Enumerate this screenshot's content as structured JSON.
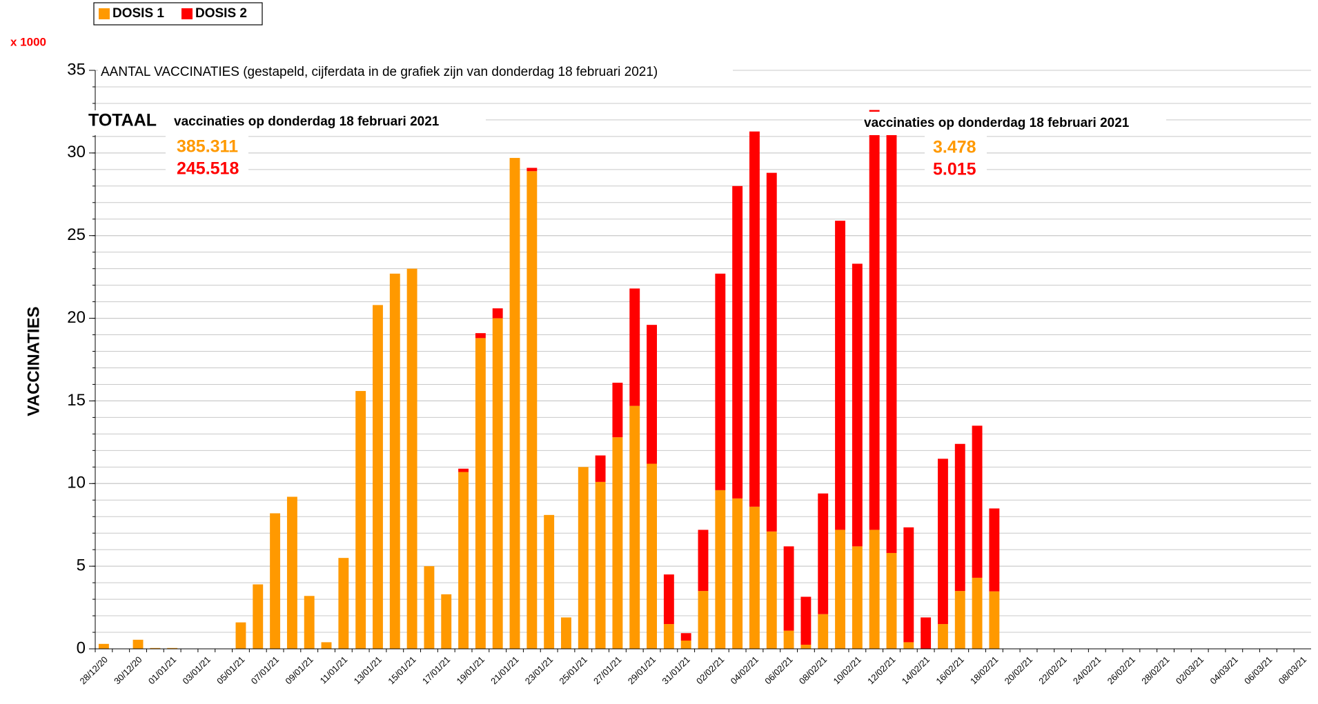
{
  "chart_data": {
    "type": "stacked_bar",
    "title": "AANTAL VACCINATIES (gestapeld, cijferdata in de grafiek zijn van donderdag 18 februari 2021)",
    "y_label": "VACCINATIES",
    "y_unit": "x 1000",
    "categories": [
      "28/12/20",
      null,
      "30/12/20",
      null,
      "01/01/21",
      null,
      "03/01/21",
      null,
      "05/01/21",
      null,
      "07/01/21",
      null,
      "09/01/21",
      null,
      "11/01/21",
      null,
      "13/01/21",
      null,
      "15/01/21",
      null,
      "17/01/21",
      null,
      "19/01/21",
      null,
      "21/01/21",
      null,
      "23/01/21",
      null,
      "25/01/21",
      null,
      "27/01/21",
      null,
      "29/01/21",
      null,
      "31/01/21",
      null,
      "02/02/21",
      null,
      "04/02/21",
      null,
      "06/02/21",
      null,
      "08/02/21",
      null,
      "10/02/21",
      null,
      "12/02/21",
      null,
      "14/02/21",
      null,
      "16/02/21",
      null,
      "18/02/21",
      null,
      "20/02/21",
      null,
      "22/02/21",
      null,
      "24/02/21",
      null,
      "26/02/21",
      null,
      "28/02/21",
      null,
      "02/03/21",
      null,
      "04/03/21",
      null,
      "06/03/21",
      null,
      "08/03/21"
    ],
    "series": [
      {
        "name": "DOSIS 1",
        "color": "#ff9900",
        "values": [
          0.3,
          0,
          0.55,
          0.05,
          0.05,
          0,
          0,
          0,
          1.6,
          3.9,
          8.2,
          9.2,
          3.2,
          0.4,
          5.5,
          15.6,
          20.8,
          22.7,
          23.0,
          5.0,
          3.3,
          10.7,
          18.8,
          20.0,
          29.7,
          28.9,
          8.1,
          1.9,
          11.0,
          10.1,
          12.8,
          14.7,
          11.2,
          1.5,
          0.5,
          3.5,
          9.6,
          9.1,
          8.6,
          7.1,
          1.1,
          0.25,
          2.1,
          7.2,
          6.2,
          7.2,
          5.8,
          0.4,
          0,
          1.5,
          3.5,
          4.3,
          3.478,
          null,
          null,
          null,
          null,
          null,
          null,
          null,
          null,
          null,
          null,
          null,
          null,
          null,
          null,
          null,
          null,
          null,
          null
        ]
      },
      {
        "name": "DOSIS 2",
        "color": "#ff0000",
        "values": [
          0,
          0,
          0,
          0,
          0,
          0,
          0,
          0,
          0,
          0,
          0,
          0,
          0,
          0,
          0,
          0,
          0,
          0,
          0,
          0,
          0,
          0.2,
          0.3,
          0.6,
          0,
          0.2,
          0,
          0,
          0,
          1.6,
          3.3,
          7.1,
          8.4,
          3.0,
          0.45,
          3.7,
          13.1,
          18.9,
          22.7,
          21.7,
          5.1,
          2.9,
          7.3,
          18.7,
          17.1,
          25.4,
          26.2,
          6.95,
          1.9,
          10.0,
          8.9,
          9.2,
          5.015,
          null,
          null,
          null,
          null,
          null,
          null,
          null,
          null,
          null,
          null,
          null,
          null,
          null,
          null,
          null,
          null,
          null,
          null
        ]
      }
    ],
    "ylim": [
      0,
      35
    ],
    "yticks": [
      0,
      5,
      10,
      15,
      20,
      25,
      30,
      35
    ],
    "minor_grid_step": 1,
    "grid": true,
    "legend": "top-left",
    "annotations": {
      "total_label": "TOTAAL",
      "total_caption": "vaccinaties op donderdag 18 februari 2021",
      "total_dose1": 385.311,
      "total_dose2": 245.518,
      "day_caption": "vaccinaties op donderdag 18 februari 2021",
      "day_dose1": 3.478,
      "day_dose2": 5.015
    }
  }
}
